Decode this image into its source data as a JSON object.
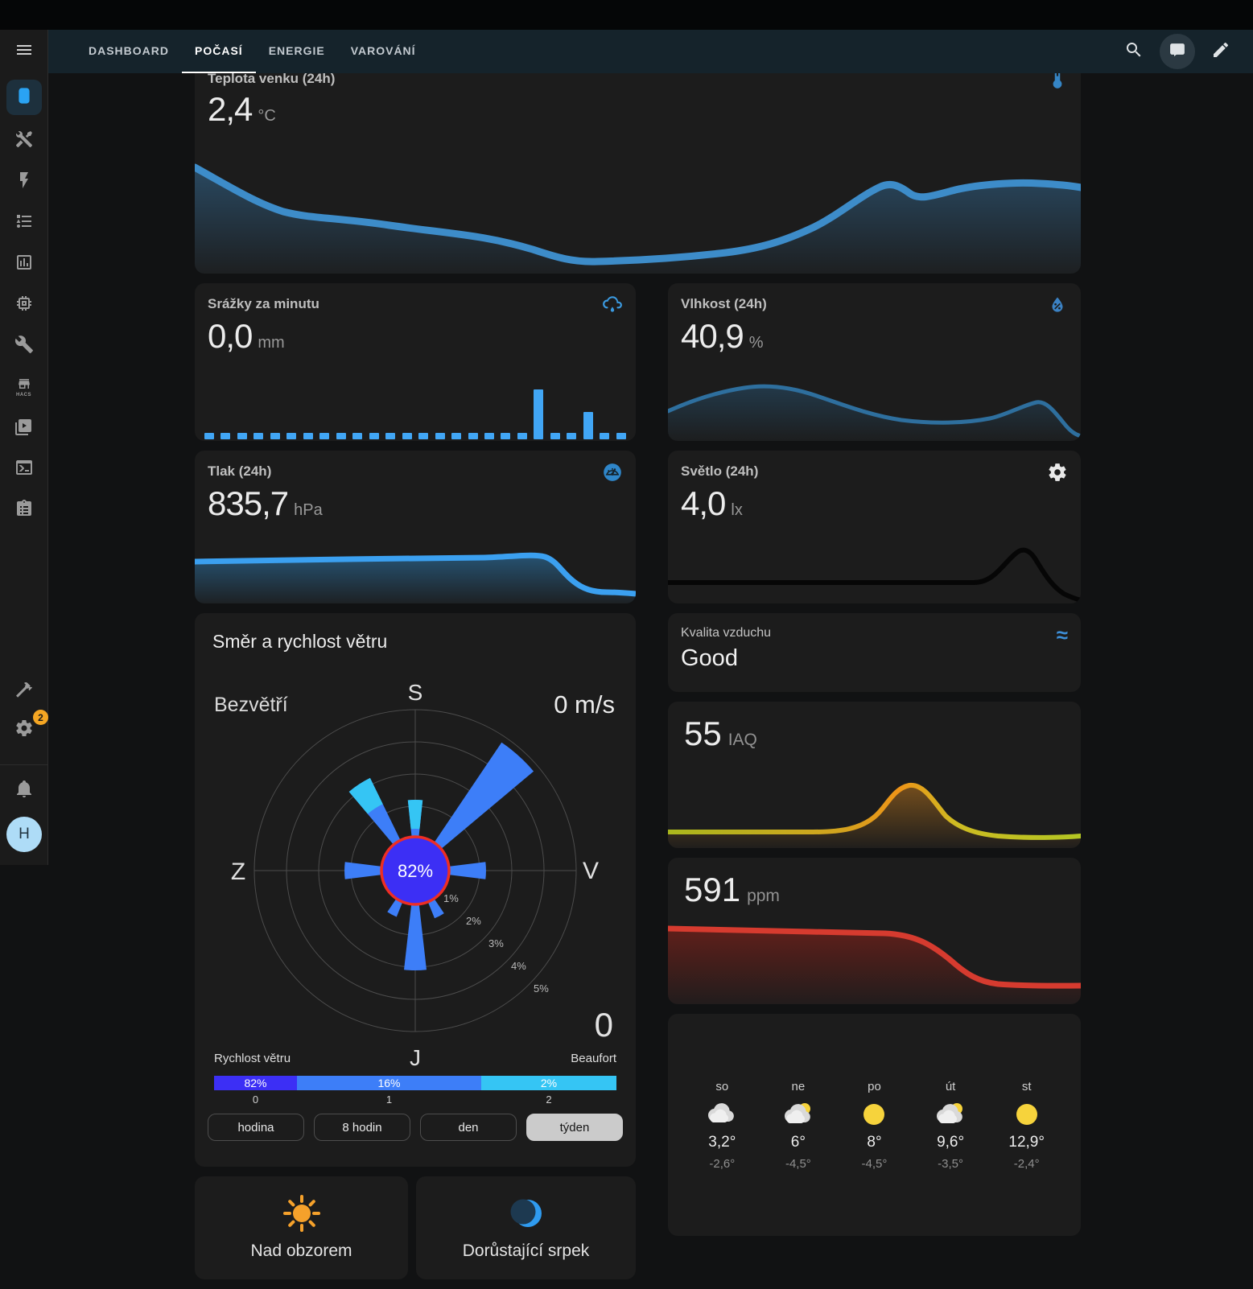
{
  "app_bar": {
    "tabs": [
      {
        "label": "DASHBOARD",
        "active": false
      },
      {
        "label": "POČASÍ",
        "active": true
      },
      {
        "label": "ENERGIE",
        "active": false
      },
      {
        "label": "VAROVÁNÍ",
        "active": false
      }
    ],
    "actions": [
      "search",
      "chat",
      "edit"
    ]
  },
  "sidebar": {
    "items": [
      "overview-tablet",
      "tools",
      "energy",
      "todo-list",
      "history-chart",
      "hardware-chip",
      "wrench",
      "hacs",
      "media",
      "terminal",
      "logbook"
    ],
    "hacs_label": "HACS",
    "bottom_items": [
      "developer-tools-hammer",
      "settings-gear",
      "notifications-bell",
      "user-avatar"
    ],
    "settings_badge": "2",
    "avatar_initial": "H"
  },
  "colors": {
    "appbar": "#15232b",
    "card": "#1c1c1c",
    "accent_blue": "#2aa3f3",
    "chart_blue": "#3d8cc9",
    "bar_blue": "#41a6f5",
    "calm_indigo": "#3c2ff5",
    "beaufort1_blue": "#3d7ef8",
    "beaufort2_cyan": "#35c5f4",
    "rose_ring_red": "#ee2e24",
    "iaq_yellow": "#aab71d",
    "iaq_orange": "#ee9418",
    "co2_red": "#d63b2f",
    "sun_orange": "#f5a12b",
    "badge_orange": "#f5a623"
  },
  "cards": {
    "temperature": {
      "title": "Teplota venku (24h)",
      "value": "2,4",
      "unit": "°C"
    },
    "precipitation": {
      "title": "Srážky za minutu",
      "value": "0,0",
      "unit": "mm",
      "bars": [
        8,
        8,
        8,
        8,
        8,
        8,
        8,
        8,
        8,
        8,
        8,
        8,
        8,
        8,
        8,
        8,
        8,
        8,
        8,
        8,
        62,
        8,
        8,
        34,
        8,
        8
      ]
    },
    "humidity": {
      "title": "Vlhkost (24h)",
      "value": "40,9",
      "unit": "%"
    },
    "pressure": {
      "title": "Tlak (24h)",
      "value": "835,7",
      "unit": "hPa"
    },
    "light": {
      "title": "Světlo (24h)",
      "value": "4,0",
      "unit": "lx"
    },
    "wind": {
      "title": "Směr a rychlost větru",
      "state_label": "Bezvětří",
      "speed_label": "0 m/s",
      "center_label": "82%",
      "beaufort_current": "0",
      "compass": {
        "north": "S",
        "east": "V",
        "south": "J",
        "west": "Z"
      },
      "ring_labels": [
        "1%",
        "2%",
        "3%",
        "4%",
        "5%"
      ],
      "legend_left": "Rychlost větru",
      "legend_right": "Beaufort",
      "segments": [
        {
          "label": "82%",
          "tick": "0"
        },
        {
          "label": "16%",
          "tick": "1"
        },
        {
          "label": "2%",
          "tick": "2"
        }
      ],
      "range_buttons": [
        "hodina",
        "8 hodin",
        "den",
        "týden"
      ],
      "active_range": "týden"
    },
    "air_quality": {
      "title": "Kvalita vzduchu",
      "value": "Good"
    },
    "iaq": {
      "value": "55",
      "unit": "IAQ"
    },
    "co2": {
      "value": "591",
      "unit": "ppm"
    },
    "forecast": {
      "days": [
        {
          "day": "so",
          "icon": "cloudy",
          "high": "3,2°",
          "low": "-2,6°"
        },
        {
          "day": "ne",
          "icon": "partlycloudy",
          "high": "6°",
          "low": "-4,5°"
        },
        {
          "day": "po",
          "icon": "sunny",
          "high": "8°",
          "low": "-4,5°"
        },
        {
          "day": "út",
          "icon": "partlycloudy",
          "high": "9,6°",
          "low": "-3,5°"
        },
        {
          "day": "st",
          "icon": "sunny",
          "high": "12,9°",
          "low": "-2,4°"
        }
      ]
    },
    "sun": {
      "label": "Nad obzorem"
    },
    "moon": {
      "label": "Dorůstající srpek"
    }
  },
  "chart_data": [
    {
      "id": "temperature_24h",
      "type": "line",
      "title": "Teplota venku (24h)",
      "unit": "°C",
      "current": 2.4,
      "values_estimated": [
        2.6,
        2.1,
        1.6,
        1.4,
        1.3,
        1.2,
        1.0,
        0.8,
        0.5,
        0.3,
        0.2,
        0.2,
        0.3,
        0.4,
        0.7,
        1.4,
        2.2,
        2.6,
        2.3,
        2.5,
        2.6,
        2.6,
        2.5
      ]
    },
    {
      "id": "precipitation_per_minute",
      "type": "bar",
      "title": "Srážky za minutu",
      "unit": "mm",
      "current": 0.0,
      "values_estimated": [
        0.1,
        0.1,
        0.1,
        0.1,
        0.1,
        0.1,
        0.1,
        0.1,
        0.1,
        0.1,
        0.1,
        0.1,
        0.1,
        0.1,
        0.1,
        0.1,
        0.1,
        0.1,
        0.1,
        0.1,
        0.8,
        0.1,
        0.1,
        0.45,
        0.1,
        0.1
      ]
    },
    {
      "id": "humidity_24h",
      "type": "line",
      "title": "Vlhkost (24h)",
      "unit": "%",
      "current": 40.9,
      "values_estimated": [
        48,
        52,
        56,
        57,
        55,
        50,
        45,
        42,
        41,
        40,
        41,
        42,
        46,
        49,
        50,
        46,
        40,
        36,
        35
      ]
    },
    {
      "id": "pressure_24h",
      "type": "line",
      "title": "Tlak (24h)",
      "unit": "hPa",
      "current": 835.7,
      "values_estimated": [
        838,
        838,
        838.2,
        838.3,
        838.4,
        838.5,
        838.6,
        838.8,
        836.5,
        835.8,
        835.7,
        835.7
      ]
    },
    {
      "id": "light_24h",
      "type": "line",
      "title": "Světlo (24h)",
      "unit": "lx",
      "current": 4.0,
      "values_estimated": [
        0,
        0,
        0,
        0,
        0,
        0,
        0,
        0,
        0,
        0,
        0,
        120,
        20,
        4
      ]
    },
    {
      "id": "iaq",
      "type": "line",
      "unit": "IAQ",
      "current": 55,
      "values_estimated": [
        55,
        55,
        55,
        55,
        58,
        75,
        110,
        125,
        110,
        80,
        60,
        52,
        50,
        52,
        55
      ]
    },
    {
      "id": "co2",
      "type": "line",
      "unit": "ppm",
      "current": 591,
      "values_estimated": [
        1050,
        1045,
        1040,
        1035,
        1020,
        950,
        820,
        680,
        610,
        595,
        592,
        591
      ]
    },
    {
      "id": "wind_rose",
      "type": "windrose",
      "calm_pct": 82,
      "speed_ms": 0,
      "rings_pct": [
        1,
        2,
        3,
        4,
        5
      ],
      "petals": [
        {
          "dir": "N",
          "pct": 2.2,
          "beaufort2_tip": true
        },
        {
          "dir": "NNW",
          "pct": 3.2,
          "beaufort2_tip": true
        },
        {
          "dir": "NE",
          "pct": 4.8,
          "beaufort2_tip": false
        },
        {
          "dir": "E",
          "pct": 2.2,
          "beaufort2_tip": false
        },
        {
          "dir": "W",
          "pct": 2.2,
          "beaufort2_tip": false
        },
        {
          "dir": "SSE",
          "pct": 1.6,
          "beaufort2_tip": false
        },
        {
          "dir": "SSW",
          "pct": 1.5,
          "beaufort2_tip": false
        },
        {
          "dir": "S",
          "pct": 3.1,
          "beaufort2_tip": false
        }
      ],
      "beaufort_distribution": [
        {
          "bft": 0,
          "pct": 82
        },
        {
          "bft": 1,
          "pct": 16
        },
        {
          "bft": 2,
          "pct": 2
        }
      ]
    },
    {
      "id": "forecast",
      "type": "table",
      "categories": [
        "so",
        "ne",
        "po",
        "út",
        "st"
      ],
      "series": [
        {
          "name": "high_c",
          "values": [
            3.2,
            6,
            8,
            9.6,
            12.9
          ]
        },
        {
          "name": "low_c",
          "values": [
            -2.6,
            -4.5,
            -4.5,
            -3.5,
            -2.4
          ]
        },
        {
          "name": "condition",
          "values": [
            "cloudy",
            "partlycloudy",
            "sunny",
            "partlycloudy",
            "sunny"
          ]
        }
      ]
    }
  ]
}
